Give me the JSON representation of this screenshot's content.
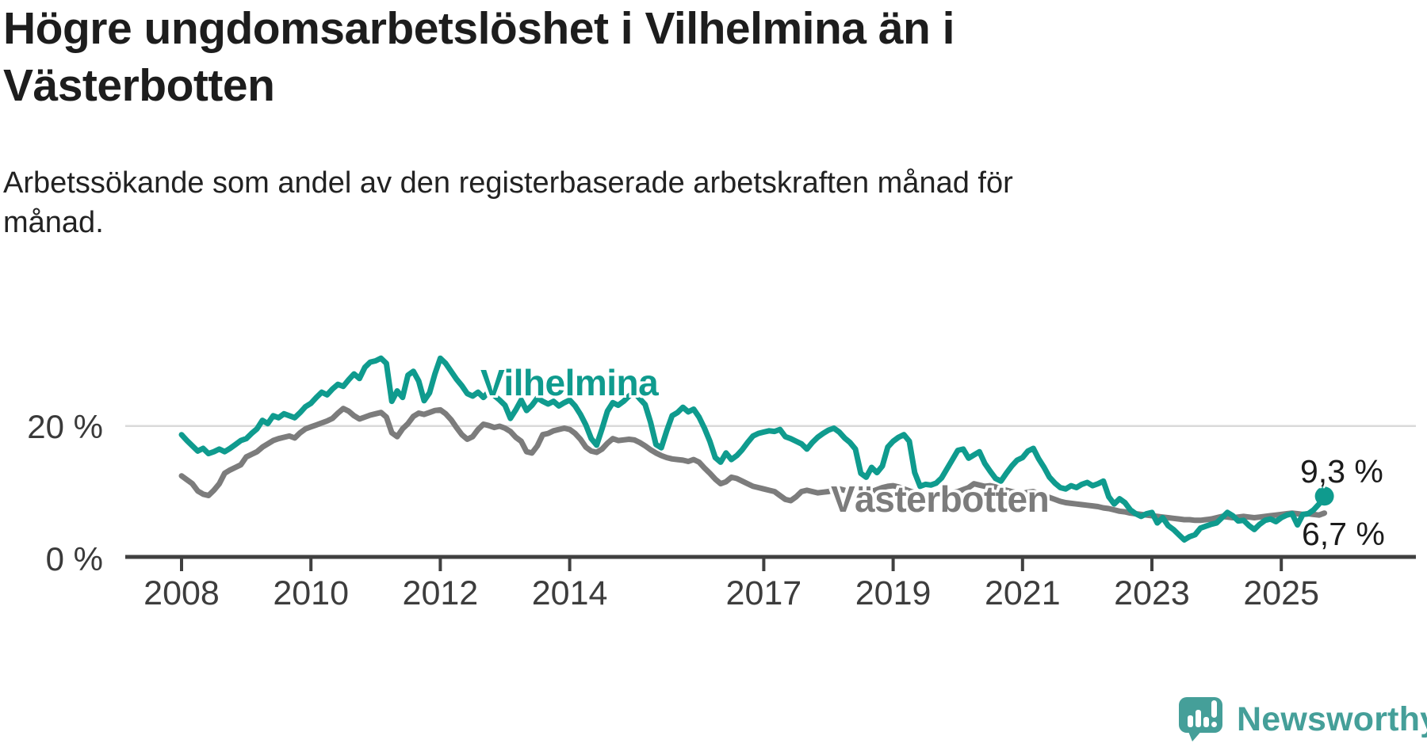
{
  "title": "Högre ungdomsarbetslöshet i Vilhelmina än i Västerbotten",
  "subtitle": "Arbetssökande som andel av den registerbaserade arbetskraften månad för månad.",
  "branding": {
    "name": "Newsworthy",
    "color": "#459f99"
  },
  "chart_data": {
    "type": "line",
    "unit": "%",
    "frequency": "monthly",
    "x_start": "2008-01",
    "x_end": "2025-09",
    "ylim": [
      0,
      33
    ],
    "grid": "single horizontal gridline at 20 %",
    "gridline_value": 20,
    "ylabel_20": "20 %",
    "ylabel_0": "0 %",
    "xticks": [
      2008,
      2010,
      2012,
      2014,
      2017,
      2019,
      2021,
      2023,
      2025
    ],
    "legend_position": "inline labels on lines",
    "series": [
      {
        "name": "Vilhelmina",
        "color": "#0f9b8e",
        "end_label": "9,3 %",
        "end_value": 9.3,
        "marker_end": true,
        "values": [
          18.7,
          17.8,
          17.0,
          16.2,
          16.6,
          15.8,
          16.1,
          16.5,
          16.1,
          16.6,
          17.2,
          17.8,
          18.1,
          18.9,
          19.6,
          20.9,
          20.4,
          21.6,
          21.3,
          21.9,
          21.6,
          21.3,
          22.1,
          23.0,
          23.5,
          24.4,
          25.2,
          24.8,
          25.7,
          26.4,
          26.1,
          27.1,
          28.0,
          27.3,
          29.0,
          29.8,
          30.0,
          30.4,
          29.6,
          23.8,
          25.4,
          24.4,
          27.8,
          28.4,
          26.9,
          23.9,
          25.1,
          28.0,
          30.4,
          29.6,
          28.4,
          27.2,
          26.2,
          25.0,
          24.6,
          25.2,
          24.4,
          25.3,
          24.7,
          24.0,
          23.2,
          21.2,
          22.5,
          24.0,
          22.4,
          23.2,
          24.3,
          23.8,
          23.4,
          23.8,
          23.1,
          23.6,
          24.0,
          23.1,
          21.8,
          20.2,
          18.1,
          17.1,
          19.6,
          22.3,
          23.6,
          23.2,
          23.8,
          24.6,
          25.2,
          24.2,
          23.3,
          20.6,
          17.2,
          16.7,
          19.3,
          21.6,
          22.1,
          22.9,
          22.2,
          22.6,
          21.4,
          19.7,
          17.7,
          15.2,
          14.5,
          15.9,
          14.9,
          15.5,
          16.4,
          17.5,
          18.5,
          18.9,
          19.1,
          19.3,
          19.2,
          19.5,
          18.4,
          18.1,
          17.7,
          17.3,
          16.5,
          17.5,
          18.3,
          18.9,
          19.4,
          19.7,
          19.1,
          18.2,
          17.5,
          16.5,
          12.8,
          12.2,
          13.7,
          12.9,
          13.9,
          16.8,
          17.7,
          18.3,
          18.7,
          17.7,
          12.9,
          10.8,
          11.1,
          11.0,
          11.3,
          12.1,
          13.5,
          14.9,
          16.3,
          16.5,
          15.1,
          15.6,
          16.1,
          14.3,
          13.1,
          12.0,
          11.6,
          12.8,
          13.9,
          14.8,
          15.2,
          16.2,
          16.6,
          15.0,
          13.7,
          12.2,
          11.3,
          10.6,
          10.4,
          10.9,
          10.6,
          11.1,
          11.4,
          10.9,
          11.2,
          11.6,
          9.2,
          8.1,
          8.9,
          8.3,
          7.2,
          6.6,
          6.2,
          6.6,
          6.8,
          5.2,
          6.0,
          4.8,
          4.2,
          3.4,
          2.6,
          3.1,
          3.4,
          4.4,
          4.7,
          5.0,
          5.2,
          6.0,
          6.8,
          6.3,
          5.5,
          5.6,
          4.8,
          4.2,
          5.0,
          5.6,
          5.8,
          5.4,
          6.0,
          6.4,
          6.6,
          4.9,
          6.5,
          6.6,
          7.2,
          8.1,
          9.3
        ]
      },
      {
        "name": "Västerbotten",
        "color": "#7c7c7c",
        "end_label": "6,7 %",
        "end_value": 6.7,
        "marker_end": false,
        "values": [
          12.4,
          11.8,
          11.2,
          10.1,
          9.6,
          9.4,
          10.2,
          11.2,
          12.8,
          13.3,
          13.7,
          14.1,
          15.3,
          15.7,
          16.1,
          16.8,
          17.3,
          17.8,
          18.1,
          18.3,
          18.5,
          18.2,
          19.0,
          19.6,
          19.9,
          20.2,
          20.5,
          20.8,
          21.2,
          22.0,
          22.7,
          22.3,
          21.6,
          21.1,
          21.4,
          21.7,
          21.9,
          22.1,
          21.4,
          19.0,
          18.4,
          19.6,
          20.4,
          21.5,
          22.0,
          21.8,
          22.1,
          22.4,
          22.5,
          21.9,
          21.0,
          19.8,
          18.7,
          18.0,
          18.4,
          19.5,
          20.3,
          20.1,
          19.8,
          20.0,
          19.7,
          19.2,
          18.3,
          17.7,
          16.1,
          15.9,
          17.0,
          18.7,
          18.9,
          19.3,
          19.5,
          19.7,
          19.5,
          18.9,
          18.0,
          16.8,
          16.2,
          16.0,
          16.5,
          17.4,
          18.1,
          17.8,
          17.9,
          18.0,
          17.9,
          17.5,
          17.0,
          16.4,
          15.9,
          15.5,
          15.2,
          15.0,
          14.9,
          14.8,
          14.6,
          14.9,
          14.5,
          13.6,
          12.8,
          11.9,
          11.2,
          11.5,
          12.2,
          12.0,
          11.6,
          11.2,
          10.8,
          10.6,
          10.4,
          10.2,
          10.0,
          9.4,
          8.8,
          8.6,
          9.2,
          10.0,
          10.2,
          10.0,
          9.8,
          9.9,
          10.0,
          10.2,
          10.4,
          10.2,
          9.9,
          9.6,
          9.4,
          9.7,
          10.0,
          10.3,
          10.6,
          10.8,
          10.9,
          10.7,
          10.4,
          10.1,
          9.8,
          9.5,
          9.3,
          9.4,
          9.6,
          9.3,
          9.5,
          9.8,
          10.0,
          10.3,
          10.6,
          11.2,
          11.0,
          10.8,
          10.9,
          10.7,
          10.4,
          10.2,
          10.0,
          9.8,
          9.7,
          9.9,
          10.0,
          9.7,
          9.4,
          9.1,
          8.8,
          8.5,
          8.3,
          8.2,
          8.1,
          8.0,
          7.9,
          7.8,
          7.7,
          7.5,
          7.4,
          7.2,
          7.0,
          6.9,
          6.7,
          6.6,
          6.5,
          6.4,
          6.3,
          6.2,
          6.1,
          6.0,
          5.9,
          5.8,
          5.7,
          5.7,
          5.6,
          5.6,
          5.7,
          5.8,
          6.0,
          6.2,
          6.1,
          6.0,
          6.1,
          6.2,
          6.1,
          6.0,
          6.1,
          6.2,
          6.3,
          6.4,
          6.5,
          6.6,
          6.7,
          6.6,
          6.5,
          6.6,
          6.5,
          6.4,
          6.7
        ]
      }
    ]
  }
}
